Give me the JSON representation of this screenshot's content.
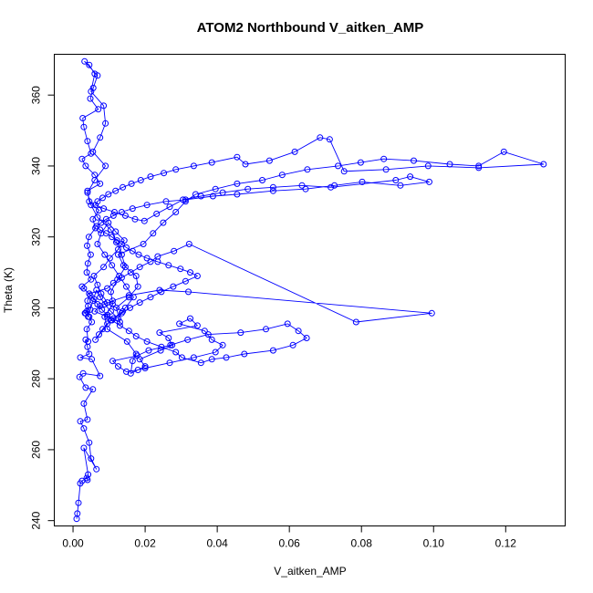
{
  "chart_data": {
    "type": "scatter",
    "title": "ATOM2 Northbound V_aitken_AMP",
    "xlabel": "V_aitken_AMP",
    "ylabel": "Theta (K)",
    "xlim": [
      -0.0052,
      0.1365
    ],
    "ylim": [
      238.5,
      371.5
    ],
    "x_ticks": [
      0.0,
      0.02,
      0.04,
      0.06,
      0.08,
      0.1,
      0.12
    ],
    "x_tick_labels": [
      "0.00",
      "0.02",
      "0.04",
      "0.06",
      "0.08",
      "0.10",
      "0.12"
    ],
    "y_ticks": [
      240,
      260,
      280,
      300,
      320,
      340,
      360
    ],
    "y_tick_labels": [
      "240",
      "260",
      "280",
      "300",
      "320",
      "340",
      "360"
    ],
    "grid": false,
    "legend": "none",
    "marker": "open-circle",
    "connected": true,
    "color": "#0000ff",
    "series": [
      {
        "x": [
          0.001,
          0.0012,
          0.0015,
          0.002,
          0.0025,
          0.0038,
          0.004,
          0.0042,
          0.003,
          0.0065,
          0.005,
          0.0045,
          0.003,
          0.002,
          0.004,
          0.003,
          0.0055,
          0.0035,
          0.0018,
          0.0028,
          0.0075,
          0.0052,
          0.002,
          0.0045,
          0.004,
          0.0035,
          0.0042,
          0.0038,
          0.0052,
          0.0045,
          0.0033,
          0.0042,
          0.004,
          0.0048,
          0.003,
          0.0025,
          0.005,
          0.0038,
          0.0041,
          0.0049,
          0.0039,
          0.0044,
          0.0062,
          0.0055,
          0.0072,
          0.0045,
          0.004,
          0.0075,
          0.006,
          0.0035,
          0.0025,
          0.005,
          0.004,
          0.003,
          0.0027,
          0.007,
          0.0048,
          0.0056,
          0.0068,
          0.0032,
          0.0045,
          0.006,
          0.005,
          0.0085,
          0.009,
          0.0075,
          0.0055,
          0.009,
          0.006,
          0.004,
          0.005,
          0.0068,
          0.0105,
          0.012,
          0.0135,
          0.0145,
          0.0123,
          0.0105,
          0.011,
          0.0088,
          0.0095,
          0.015,
          0.0175,
          0.0165,
          0.016,
          0.02,
          0.0185,
          0.0243,
          0.0275,
          0.0265,
          0.024,
          0.0345,
          0.0325,
          0.0295,
          0.0365,
          0.0385,
          0.0415,
          0.0395,
          0.0335,
          0.0268,
          0.02,
          0.018,
          0.0148,
          0.0125,
          0.011,
          0.0178,
          0.021,
          0.027,
          0.0318,
          0.0375,
          0.0465,
          0.0535,
          0.0595,
          0.0625,
          0.0648,
          0.061,
          0.0555,
          0.0475,
          0.0425,
          0.0385,
          0.0355,
          0.0302,
          0.0285,
          0.0245,
          0.0205,
          0.0175,
          0.0155,
          0.013,
          0.0108,
          0.0095,
          0.008,
          0.0068,
          0.0058,
          0.0045,
          0.0095,
          0.0112,
          0.0135,
          0.016,
          0.0185,
          0.0215,
          0.0235,
          0.028,
          0.0322,
          0.0785,
          0.0995,
          0.032,
          0.024,
          0.0155,
          0.011,
          0.0075,
          0.006,
          0.0095,
          0.013,
          0.012,
          0.0155,
          0.018,
          0.0175,
          0.014,
          0.0125,
          0.0195,
          0.0222,
          0.025,
          0.0285,
          0.0312,
          0.034,
          0.0395,
          0.0455,
          0.0525,
          0.058,
          0.065,
          0.0735,
          0.0798,
          0.0862,
          0.0945,
          0.1045,
          0.1125,
          0.1195,
          0.1305,
          0.1125,
          0.0985,
          0.0868,
          0.0752,
          0.0712,
          0.0685,
          0.0615,
          0.0545,
          0.0478,
          0.0455,
          0.0385,
          0.0335,
          0.0285,
          0.0252,
          0.0215,
          0.0188,
          0.0162,
          0.0138,
          0.0118,
          0.0098,
          0.0082,
          0.0068,
          0.0062,
          0.0085,
          0.0115,
          0.0145,
          0.0172,
          0.0198,
          0.0232,
          0.0268,
          0.0305,
          0.0355,
          0.0415,
          0.0485,
          0.0555,
          0.0635,
          0.0715,
          0.0895,
          0.0935,
          0.0988,
          0.0908,
          0.0802,
          0.0725,
          0.0645,
          0.0555,
          0.0455,
          0.0388,
          0.0312,
          0.0258,
          0.0205,
          0.0165,
          0.0135,
          0.0112,
          0.0092,
          0.0078,
          0.0065,
          0.0075,
          0.0092,
          0.0108,
          0.0122,
          0.0135,
          0.0148,
          0.0165,
          0.0182,
          0.0205,
          0.0235,
          0.0265,
          0.0298,
          0.0325,
          0.0345,
          0.0312,
          0.0278,
          0.0245,
          0.0215,
          0.0185,
          0.0158,
          0.0135,
          0.0112,
          0.0095,
          0.0082,
          0.0072,
          0.0062,
          0.0105,
          0.0138,
          0.0095,
          0.0078,
          0.0068,
          0.0058,
          0.0085,
          0.0102,
          0.0125,
          0.0142,
          0.0118,
          0.0098,
          0.0078,
          0.0068,
          0.0088,
          0.0108,
          0.0128,
          0.0148,
          0.0168,
          0.0145,
          0.0125,
          0.0105,
          0.0088,
          0.0075,
          0.0065,
          0.0055,
          0.0048,
          0.0042,
          0.0038,
          0.0035
        ],
        "y": [
          240.5,
          242.0,
          245.0,
          250.5,
          251.2,
          252.0,
          251.5,
          253.0,
          260.5,
          254.5,
          257.5,
          262.0,
          266.0,
          268.0,
          268.5,
          273.0,
          277.0,
          277.5,
          280.5,
          281.5,
          280.8,
          285.5,
          286.0,
          287.0,
          289.0,
          291.0,
          290.5,
          294.0,
          296.0,
          297.5,
          298.5,
          300.5,
          302.0,
          303.5,
          305.5,
          306.0,
          308.0,
          310.0,
          312.5,
          315.0,
          317.5,
          320.0,
          322.5,
          325.0,
          327.5,
          330.0,
          333.0,
          335.0,
          337.5,
          340.0,
          342.0,
          343.5,
          347.0,
          351.0,
          353.5,
          356.0,
          359.0,
          362.0,
          365.5,
          369.5,
          368.5,
          366.0,
          361.0,
          357.0,
          352.0,
          348.0,
          344.0,
          340.0,
          336.0,
          332.5,
          329.0,
          325.5,
          322.0,
          318.5,
          315.0,
          311.5,
          308.0,
          304.5,
          301.0,
          297.5,
          294.0,
          290.5,
          287.0,
          285.0,
          281.5,
          283.5,
          285.5,
          288.0,
          289.5,
          291.5,
          293.0,
          295.0,
          297.0,
          295.5,
          293.5,
          291.0,
          289.5,
          287.5,
          286.0,
          284.5,
          283.0,
          282.5,
          282.0,
          283.5,
          285.0,
          286.5,
          288.0,
          289.5,
          291.0,
          292.5,
          293.0,
          294.0,
          295.5,
          293.5,
          291.5,
          289.5,
          288.0,
          287.0,
          286.0,
          285.5,
          284.5,
          286.0,
          287.5,
          289.0,
          290.5,
          292.0,
          293.5,
          295.0,
          296.5,
          298.0,
          299.5,
          301.0,
          302.5,
          304.0,
          305.5,
          307.0,
          308.5,
          310.0,
          311.5,
          313.0,
          314.5,
          316.0,
          318.0,
          296.0,
          298.5,
          304.5,
          305.0,
          303.5,
          302.0,
          300.5,
          299.0,
          297.5,
          296.0,
          300.0,
          303.0,
          306.0,
          309.0,
          312.0,
          315.0,
          318.0,
          321.0,
          324.0,
          327.0,
          330.0,
          332.0,
          333.5,
          335.0,
          336.0,
          337.5,
          339.0,
          340.0,
          341.0,
          342.0,
          341.5,
          340.5,
          340.0,
          344.0,
          340.5,
          339.5,
          340.0,
          339.0,
          338.5,
          347.5,
          348.0,
          344.0,
          341.5,
          340.5,
          342.5,
          341.0,
          340.0,
          339.0,
          338.0,
          337.0,
          336.0,
          335.0,
          334.0,
          333.0,
          332.0,
          331.0,
          330.0,
          329.0,
          328.0,
          327.0,
          326.0,
          325.0,
          324.5,
          326.5,
          328.5,
          330.5,
          331.5,
          332.5,
          333.5,
          334.0,
          334.5,
          334.0,
          336.0,
          337.0,
          335.5,
          334.5,
          335.5,
          334.5,
          333.5,
          333.0,
          332.0,
          331.5,
          330.5,
          330.0,
          329.0,
          328.0,
          327.0,
          326.0,
          325.0,
          324.0,
          323.0,
          322.0,
          321.0,
          320.0,
          319.0,
          318.0,
          317.0,
          316.0,
          315.0,
          314.0,
          313.0,
          312.0,
          311.0,
          310.0,
          309.0,
          307.5,
          306.0,
          304.5,
          303.0,
          301.5,
          300.0,
          298.5,
          297.0,
          295.5,
          294.0,
          292.5,
          291.0,
          296.5,
          299.0,
          301.5,
          304.0,
          306.5,
          309.0,
          311.5,
          314.0,
          316.5,
          319.0,
          321.5,
          324.0,
          321.0,
          318.0,
          315.0,
          312.0,
          309.0,
          306.0,
          303.0,
          300.0,
          297.0,
          299.0,
          301.0,
          303.0,
          305.0,
          302.0,
          299.5,
          297.5,
          299.0,
          298.5
        ]
      }
    ]
  }
}
